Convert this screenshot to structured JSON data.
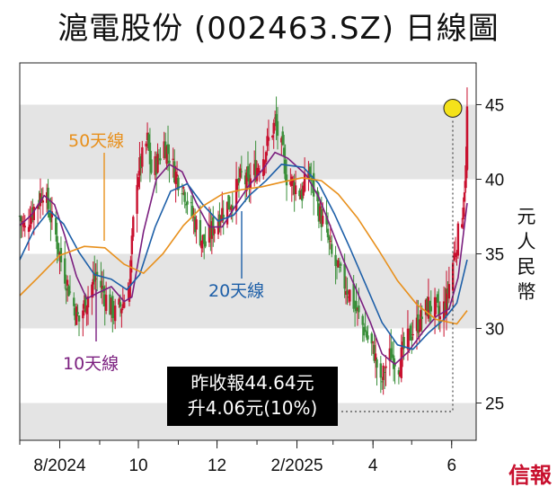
{
  "title": "滬電股份 (002463.SZ) 日線圖",
  "brand": "信報",
  "callout": {
    "line1": "昨收報44.64元",
    "line2": "升4.06元(10%)"
  },
  "colors": {
    "ma10": "#7b1f7f",
    "ma20": "#1d5fa8",
    "ma50": "#e8901c",
    "up": "#c8102e",
    "down": "#3a8f3a",
    "band": "#e4e4e4",
    "marker": "#f4e21a"
  },
  "chart_data": {
    "type": "candlestick",
    "title": "滬電股份 (002463.SZ) 日線圖",
    "ylabel": "元人民幣",
    "ylim": [
      22.5,
      47.8
    ],
    "yticks": [
      25,
      30,
      35,
      40,
      45
    ],
    "xlim": [
      "2024-07-01",
      "2025-06-20"
    ],
    "xticks": [
      {
        "date": "2024-08-01",
        "label": "8/2024"
      },
      {
        "date": "2024-10-01",
        "label": "10"
      },
      {
        "date": "2024-12-01",
        "label": "12"
      },
      {
        "date": "2025-02-01",
        "label": "2/2025"
      },
      {
        "date": "2025-04-01",
        "label": "4"
      },
      {
        "date": "2025-06-01",
        "label": "6"
      }
    ],
    "close_series": [
      [
        "2024-07-01",
        37.5
      ],
      [
        "2024-07-05",
        36.6
      ],
      [
        "2024-07-10",
        37.8
      ],
      [
        "2024-07-15",
        38.5
      ],
      [
        "2024-07-19",
        39.3
      ],
      [
        "2024-07-24",
        37.8
      ],
      [
        "2024-07-29",
        36.2
      ],
      [
        "2024-08-02",
        34.5
      ],
      [
        "2024-08-07",
        33.0
      ],
      [
        "2024-08-12",
        31.5
      ],
      [
        "2024-08-16",
        30.5
      ],
      [
        "2024-08-21",
        31.8
      ],
      [
        "2024-08-26",
        32.9
      ],
      [
        "2024-08-30",
        33.5
      ],
      [
        "2024-09-04",
        32.4
      ],
      [
        "2024-09-09",
        31.4
      ],
      [
        "2024-09-13",
        31.0
      ],
      [
        "2024-09-19",
        31.7
      ],
      [
        "2024-09-24",
        32.8
      ],
      [
        "2024-09-27",
        37.0
      ],
      [
        "2024-09-30",
        40.2
      ],
      [
        "2024-10-08",
        42.6
      ],
      [
        "2024-10-11",
        40.5
      ],
      [
        "2024-10-16",
        41.2
      ],
      [
        "2024-10-21",
        42.4
      ],
      [
        "2024-10-25",
        41.6
      ],
      [
        "2024-10-30",
        40.3
      ],
      [
        "2024-11-04",
        39.7
      ],
      [
        "2024-11-08",
        38.6
      ],
      [
        "2024-11-13",
        37.3
      ],
      [
        "2024-11-18",
        36.2
      ],
      [
        "2024-11-22",
        35.6
      ],
      [
        "2024-11-27",
        36.6
      ],
      [
        "2024-12-02",
        37.4
      ],
      [
        "2024-12-06",
        38.0
      ],
      [
        "2024-12-11",
        38.4
      ],
      [
        "2024-12-16",
        39.3
      ],
      [
        "2024-12-20",
        40.2
      ],
      [
        "2024-12-25",
        39.6
      ],
      [
        "2024-12-30",
        40.5
      ],
      [
        "2025-01-06",
        41.6
      ],
      [
        "2025-01-10",
        42.6
      ],
      [
        "2025-01-15",
        43.8
      ],
      [
        "2025-01-20",
        42.0
      ],
      [
        "2025-01-24",
        40.2
      ],
      [
        "2025-02-05",
        39.0
      ],
      [
        "2025-02-10",
        40.6
      ],
      [
        "2025-02-14",
        39.2
      ],
      [
        "2025-02-19",
        37.6
      ],
      [
        "2025-02-24",
        36.4
      ],
      [
        "2025-02-28",
        34.8
      ],
      [
        "2025-03-05",
        33.8
      ],
      [
        "2025-03-10",
        33.0
      ],
      [
        "2025-03-14",
        32.4
      ],
      [
        "2025-03-19",
        31.2
      ],
      [
        "2025-03-24",
        30.2
      ],
      [
        "2025-03-28",
        29.3
      ],
      [
        "2025-04-02",
        28.4
      ],
      [
        "2025-04-07",
        26.1
      ],
      [
        "2025-04-10",
        27.3
      ],
      [
        "2025-04-15",
        28.3
      ],
      [
        "2025-04-21",
        27.6
      ],
      [
        "2025-04-25",
        28.6
      ],
      [
        "2025-04-30",
        29.6
      ],
      [
        "2025-05-08",
        30.6
      ],
      [
        "2025-05-14",
        31.6
      ],
      [
        "2025-05-20",
        31.3
      ],
      [
        "2025-05-23",
        30.6
      ],
      [
        "2025-05-28",
        32.0
      ],
      [
        "2025-06-04",
        35.4
      ],
      [
        "2025-06-09",
        37.6
      ],
      [
        "2025-06-12",
        40.6
      ],
      [
        "2025-06-13",
        44.64
      ]
    ],
    "series": [
      {
        "name": "10天線",
        "points": [
          [
            "2024-07-01",
            36.9
          ],
          [
            "2024-07-10",
            37.6
          ],
          [
            "2024-07-20",
            38.9
          ],
          [
            "2024-07-28",
            38.3
          ],
          [
            "2024-08-05",
            36.2
          ],
          [
            "2024-08-14",
            33.5
          ],
          [
            "2024-08-22",
            32.0
          ],
          [
            "2024-08-31",
            32.4
          ],
          [
            "2024-09-10",
            32.8
          ],
          [
            "2024-09-20",
            31.8
          ],
          [
            "2024-09-26",
            32.1
          ],
          [
            "2024-10-05",
            36.5
          ],
          [
            "2024-10-15",
            40.0
          ],
          [
            "2024-10-25",
            41.0
          ],
          [
            "2024-11-04",
            40.5
          ],
          [
            "2024-11-15",
            38.4
          ],
          [
            "2024-11-25",
            36.8
          ],
          [
            "2024-12-05",
            36.8
          ],
          [
            "2024-12-16",
            38.3
          ],
          [
            "2024-12-26",
            39.6
          ],
          [
            "2025-01-05",
            40.6
          ],
          [
            "2025-01-15",
            41.8
          ],
          [
            "2025-01-25",
            41.4
          ],
          [
            "2025-02-08",
            40.3
          ],
          [
            "2025-02-18",
            38.8
          ],
          [
            "2025-02-28",
            36.6
          ],
          [
            "2025-03-10",
            34.4
          ],
          [
            "2025-03-20",
            32.4
          ],
          [
            "2025-03-30",
            30.4
          ],
          [
            "2025-04-08",
            28.3
          ],
          [
            "2025-04-18",
            27.6
          ],
          [
            "2025-04-28",
            28.4
          ],
          [
            "2025-05-10",
            29.8
          ],
          [
            "2025-05-20",
            30.8
          ],
          [
            "2025-05-30",
            31.3
          ],
          [
            "2025-06-06",
            33.4
          ],
          [
            "2025-06-13",
            38.4
          ]
        ]
      },
      {
        "name": "20天線",
        "points": [
          [
            "2024-07-01",
            34.6
          ],
          [
            "2024-07-12",
            36.6
          ],
          [
            "2024-07-24",
            37.9
          ],
          [
            "2024-08-04",
            37.0
          ],
          [
            "2024-08-16",
            35.1
          ],
          [
            "2024-08-28",
            33.6
          ],
          [
            "2024-09-10",
            33.3
          ],
          [
            "2024-09-22",
            32.6
          ],
          [
            "2024-10-02",
            33.6
          ],
          [
            "2024-10-14",
            36.8
          ],
          [
            "2024-10-26",
            39.2
          ],
          [
            "2024-11-08",
            39.7
          ],
          [
            "2024-11-20",
            38.3
          ],
          [
            "2024-12-02",
            37.2
          ],
          [
            "2024-12-14",
            37.6
          ],
          [
            "2024-12-26",
            38.9
          ],
          [
            "2025-01-08",
            39.9
          ],
          [
            "2025-01-20",
            41.0
          ],
          [
            "2025-02-06",
            40.8
          ],
          [
            "2025-02-18",
            39.7
          ],
          [
            "2025-03-02",
            37.7
          ],
          [
            "2025-03-14",
            35.4
          ],
          [
            "2025-03-26",
            33.0
          ],
          [
            "2025-04-08",
            30.4
          ],
          [
            "2025-04-20",
            28.9
          ],
          [
            "2025-05-02",
            28.6
          ],
          [
            "2025-05-14",
            29.7
          ],
          [
            "2025-05-26",
            30.6
          ],
          [
            "2025-06-05",
            31.7
          ],
          [
            "2025-06-13",
            34.6
          ]
        ]
      },
      {
        "name": "50天線",
        "points": [
          [
            "2024-07-01",
            32.2
          ],
          [
            "2024-07-15",
            33.4
          ],
          [
            "2024-08-01",
            34.9
          ],
          [
            "2024-08-20",
            35.5
          ],
          [
            "2024-09-05",
            35.4
          ],
          [
            "2024-09-20",
            34.3
          ],
          [
            "2024-10-05",
            33.7
          ],
          [
            "2024-10-20",
            35.0
          ],
          [
            "2024-11-05",
            36.9
          ],
          [
            "2024-11-20",
            38.2
          ],
          [
            "2024-12-05",
            39.0
          ],
          [
            "2024-12-20",
            39.3
          ],
          [
            "2025-01-05",
            39.5
          ],
          [
            "2025-01-20",
            39.8
          ],
          [
            "2025-02-05",
            40.1
          ],
          [
            "2025-02-20",
            39.9
          ],
          [
            "2025-03-05",
            39.0
          ],
          [
            "2025-03-20",
            37.4
          ],
          [
            "2025-04-05",
            35.3
          ],
          [
            "2025-04-20",
            33.2
          ],
          [
            "2025-05-05",
            31.6
          ],
          [
            "2025-05-20",
            30.6
          ],
          [
            "2025-06-05",
            30.3
          ],
          [
            "2025-06-13",
            31.2
          ]
        ]
      }
    ],
    "annotations": [
      {
        "text": "50天線",
        "series": "50天線"
      },
      {
        "text": "10天線",
        "series": "10天線"
      },
      {
        "text": "20天線",
        "series": "20天線"
      },
      {
        "text": "昨收報44.64元 升4.06元(10%)",
        "y": 44.64,
        "x": "2025-06-13"
      }
    ]
  }
}
